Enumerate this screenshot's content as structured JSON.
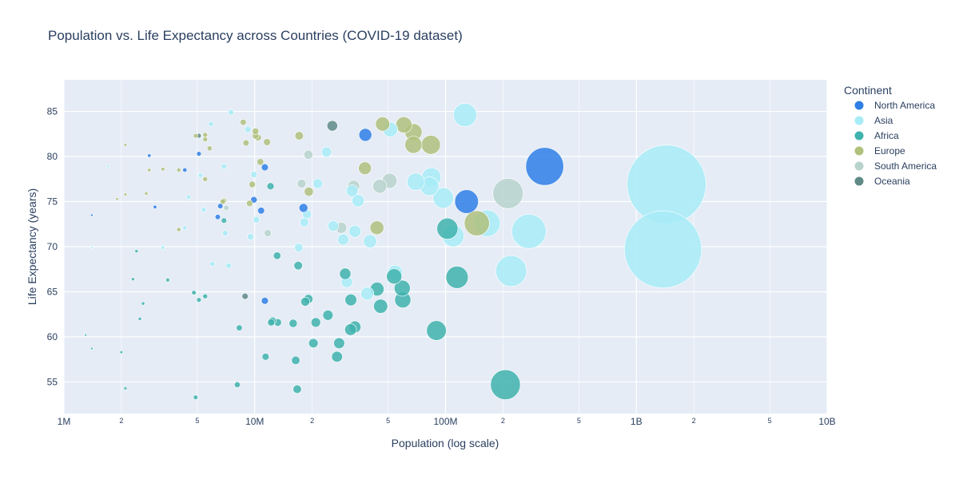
{
  "chart_data": {
    "type": "scatter",
    "title": "Population vs. Life Expectancy across Countries (COVID-19 dataset)",
    "xlabel": "Population (log scale)",
    "ylabel": "Life Expectancy (years)",
    "x_scale": "log",
    "xlim": [
      1000000,
      10000000000
    ],
    "ylim": [
      51.5,
      88.5
    ],
    "grid": true,
    "background": "#e5ecf6",
    "x_ticks": [
      {
        "value": 1000000,
        "label": "1M",
        "major": true
      },
      {
        "value": 2000000,
        "label": "2",
        "major": false
      },
      {
        "value": 5000000,
        "label": "5",
        "major": false
      },
      {
        "value": 10000000,
        "label": "10M",
        "major": true
      },
      {
        "value": 20000000,
        "label": "2",
        "major": false
      },
      {
        "value": 50000000,
        "label": "5",
        "major": false
      },
      {
        "value": 100000000,
        "label": "100M",
        "major": true
      },
      {
        "value": 200000000,
        "label": "2",
        "major": false
      },
      {
        "value": 500000000,
        "label": "5",
        "major": false
      },
      {
        "value": 1000000000,
        "label": "1B",
        "major": true
      },
      {
        "value": 2000000000,
        "label": "2",
        "major": false
      },
      {
        "value": 5000000000,
        "label": "5",
        "major": false
      },
      {
        "value": 10000000000,
        "label": "10B",
        "major": true
      }
    ],
    "y_ticks": [
      55,
      60,
      65,
      70,
      75,
      80,
      85
    ],
    "legend_title": "Continent",
    "legend_position": "right",
    "series": [
      {
        "name": "North America",
        "color": "#2f7fe6",
        "points": [
          [
            331000000,
            78.9
          ],
          [
            128900000,
            75.0
          ],
          [
            38000000,
            82.4
          ],
          [
            18000000,
            74.3
          ],
          [
            11300000,
            78.8
          ],
          [
            10800000,
            74.0
          ],
          [
            9900000,
            75.2
          ],
          [
            11300000,
            64.0
          ],
          [
            6600000,
            74.5
          ],
          [
            6400000,
            73.3
          ],
          [
            5100000,
            80.3
          ],
          [
            4300000,
            78.5
          ],
          [
            2800000,
            80.1
          ],
          [
            3000000,
            74.4
          ],
          [
            1400000,
            73.5
          ]
        ]
      },
      {
        "name": "Asia",
        "color": "#a8ecf7",
        "points": [
          [
            1440000000,
            76.9
          ],
          [
            1380000000,
            69.7
          ],
          [
            273500000,
            71.7
          ],
          [
            220900000,
            67.3
          ],
          [
            164700000,
            72.6
          ],
          [
            126500000,
            84.6
          ],
          [
            109600000,
            71.2
          ],
          [
            97300000,
            75.4
          ],
          [
            84300000,
            77.7
          ],
          [
            82300000,
            76.7
          ],
          [
            69800000,
            77.2
          ],
          [
            54400000,
            67.1
          ],
          [
            51300000,
            83.0
          ],
          [
            40200000,
            70.6
          ],
          [
            38900000,
            64.8
          ],
          [
            34800000,
            75.1
          ],
          [
            33500000,
            71.7
          ],
          [
            32400000,
            76.2
          ],
          [
            30400000,
            66.1
          ],
          [
            29100000,
            70.8
          ],
          [
            25800000,
            72.3
          ],
          [
            23800000,
            80.5
          ],
          [
            21400000,
            77.0
          ],
          [
            18800000,
            73.6
          ],
          [
            18200000,
            72.7
          ],
          [
            17000000,
            69.9
          ],
          [
            10200000,
            73.0
          ],
          [
            9900000,
            78.0
          ],
          [
            9500000,
            71.1
          ],
          [
            9200000,
            83.0
          ],
          [
            7500000,
            84.9
          ],
          [
            7300000,
            67.9
          ],
          [
            7000000,
            71.5
          ],
          [
            6900000,
            78.9
          ],
          [
            6000000,
            68.1
          ],
          [
            5900000,
            83.6
          ],
          [
            5400000,
            74.1
          ],
          [
            5200000,
            77.9
          ],
          [
            4500000,
            75.5
          ],
          [
            4300000,
            72.1
          ],
          [
            3300000,
            69.9
          ],
          [
            1700000,
            78.9
          ],
          [
            1400000,
            69.9
          ]
        ]
      },
      {
        "name": "Africa",
        "color": "#3fb3ad",
        "points": [
          [
            206000000,
            54.7
          ],
          [
            114900000,
            66.6
          ],
          [
            102300000,
            72.0
          ],
          [
            89600000,
            60.7
          ],
          [
            59700000,
            64.1
          ],
          [
            59300000,
            65.4
          ],
          [
            53800000,
            66.7
          ],
          [
            45700000,
            63.4
          ],
          [
            43800000,
            65.3
          ],
          [
            33500000,
            61.1
          ],
          [
            31900000,
            64.1
          ],
          [
            31800000,
            60.8
          ],
          [
            29800000,
            67.0
          ],
          [
            27700000,
            59.3
          ],
          [
            27000000,
            57.8
          ],
          [
            24200000,
            62.4
          ],
          [
            20900000,
            61.6
          ],
          [
            20300000,
            59.3
          ],
          [
            19100000,
            64.2
          ],
          [
            18400000,
            63.9
          ],
          [
            16900000,
            67.9
          ],
          [
            16700000,
            54.2
          ],
          [
            16400000,
            57.4
          ],
          [
            15900000,
            61.5
          ],
          [
            13100000,
            69.0
          ],
          [
            13200000,
            61.6
          ],
          [
            12400000,
            61.8
          ],
          [
            12100000,
            76.7
          ],
          [
            12200000,
            61.6
          ],
          [
            11400000,
            57.8
          ],
          [
            8300000,
            61.0
          ],
          [
            8100000,
            54.7
          ],
          [
            6900000,
            72.9
          ],
          [
            5500000,
            64.5
          ],
          [
            5100000,
            64.1
          ],
          [
            4800000,
            64.9
          ],
          [
            4900000,
            53.3
          ],
          [
            3500000,
            66.3
          ],
          [
            2400000,
            69.5
          ],
          [
            2500000,
            62.0
          ],
          [
            2600000,
            63.7
          ],
          [
            2300000,
            66.4
          ],
          [
            2100000,
            54.3
          ],
          [
            2000000,
            58.3
          ],
          [
            1400000,
            58.7
          ],
          [
            1300000,
            60.2
          ]
        ]
      },
      {
        "name": "Europe",
        "color": "#b0c17c",
        "points": [
          [
            145900000,
            72.6
          ],
          [
            83800000,
            81.3
          ],
          [
            67900000,
            82.7
          ],
          [
            67900000,
            81.3
          ],
          [
            60500000,
            83.5
          ],
          [
            46800000,
            83.6
          ],
          [
            43700000,
            72.1
          ],
          [
            37800000,
            78.7
          ],
          [
            17100000,
            82.3
          ],
          [
            19200000,
            76.1
          ],
          [
            11600000,
            81.6
          ],
          [
            10700000,
            79.4
          ],
          [
            10400000,
            82.1
          ],
          [
            10100000,
            82.3
          ],
          [
            10100000,
            82.8
          ],
          [
            9700000,
            76.9
          ],
          [
            9400000,
            74.8
          ],
          [
            9000000,
            81.5
          ],
          [
            8700000,
            83.8
          ],
          [
            6900000,
            75.1
          ],
          [
            6800000,
            75.0
          ],
          [
            5800000,
            80.9
          ],
          [
            5500000,
            81.9
          ],
          [
            5500000,
            82.4
          ],
          [
            5500000,
            77.5
          ],
          [
            4900000,
            82.3
          ],
          [
            4000000,
            78.5
          ],
          [
            4000000,
            71.9
          ],
          [
            3300000,
            78.6
          ],
          [
            2800000,
            78.5
          ],
          [
            2700000,
            75.9
          ],
          [
            2100000,
            81.3
          ],
          [
            2100000,
            75.8
          ],
          [
            1900000,
            75.3
          ]
        ]
      },
      {
        "name": "South America",
        "color": "#b8d3cc",
        "points": [
          [
            212600000,
            75.9
          ],
          [
            50900000,
            77.3
          ],
          [
            45200000,
            76.7
          ],
          [
            33000000,
            76.7
          ],
          [
            28400000,
            72.1
          ],
          [
            19100000,
            80.2
          ],
          [
            17600000,
            77.0
          ],
          [
            11700000,
            71.5
          ],
          [
            7100000,
            74.3
          ]
        ]
      },
      {
        "name": "Oceania",
        "color": "#5f8a86",
        "points": [
          [
            25500000,
            83.4
          ],
          [
            8900000,
            64.5
          ],
          [
            5100000,
            82.3
          ]
        ]
      }
    ]
  }
}
